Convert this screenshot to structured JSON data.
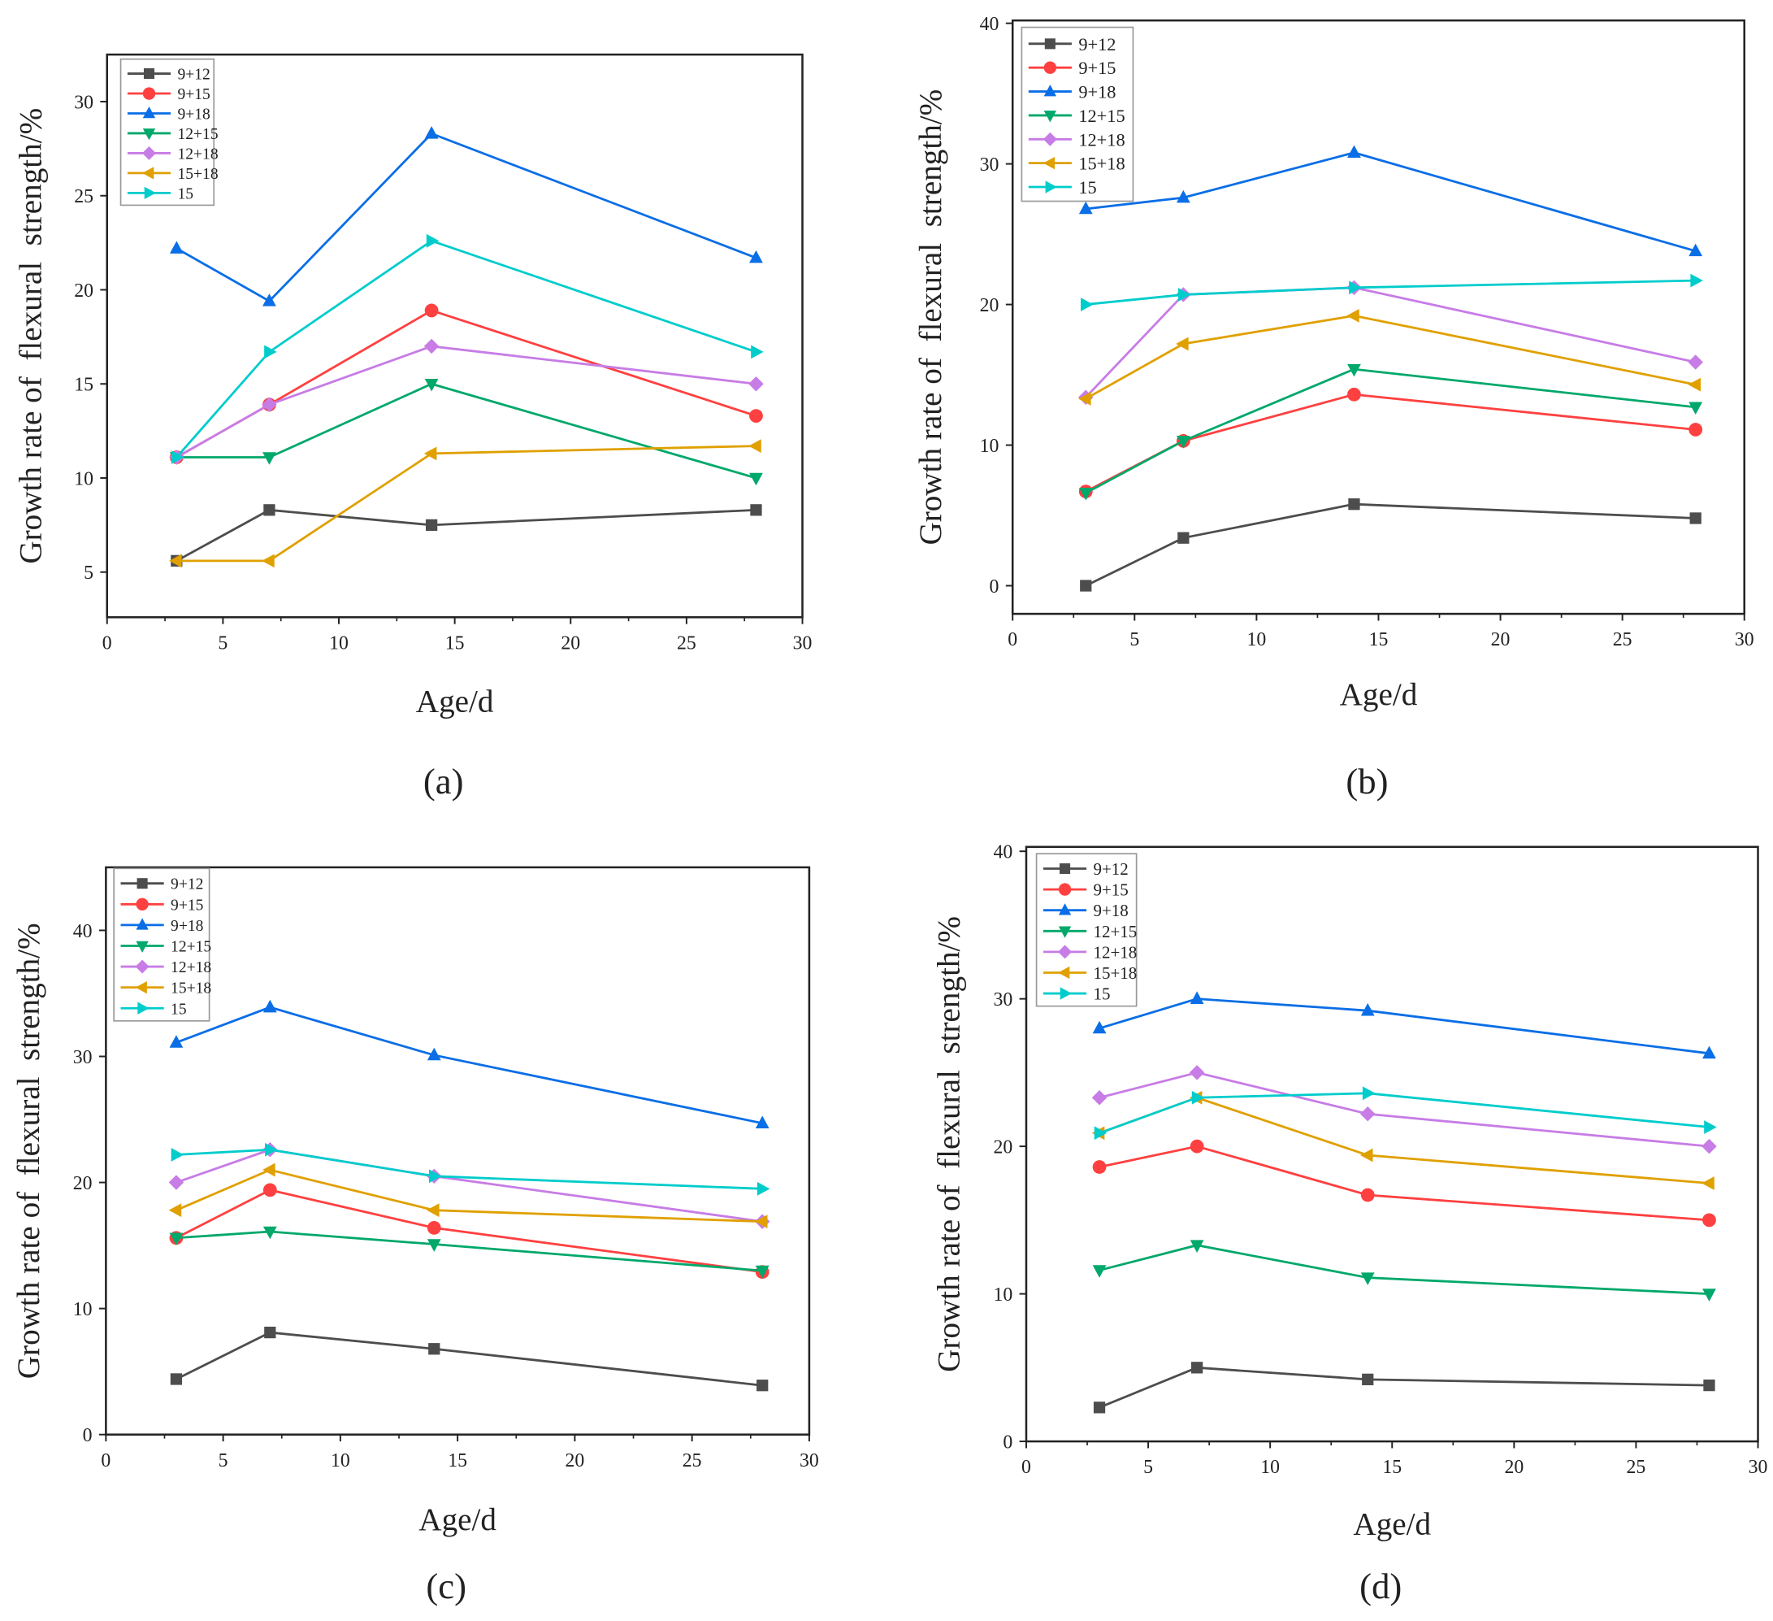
{
  "chart_data": [
    {
      "panel": "(a)",
      "panel_letter": "a",
      "type": "line",
      "xlabel": "Age/d",
      "ylabel": "Growth rate of  flexural  strength/%",
      "xlim": [
        0,
        30
      ],
      "ylim": [
        2.6,
        32.5
      ],
      "xticks": [
        0,
        5,
        10,
        15,
        20,
        25,
        30
      ],
      "yticks": [
        5,
        10,
        15,
        20,
        25,
        30
      ],
      "legend_position": "top-left",
      "x": [
        3,
        7,
        14,
        28
      ],
      "series": [
        {
          "name": "9+12",
          "values": [
            5.6,
            8.3,
            7.5,
            8.3
          ]
        },
        {
          "name": "9+15",
          "values": [
            11.1,
            13.9,
            18.9,
            13.3
          ]
        },
        {
          "name": "9+18",
          "values": [
            22.2,
            19.4,
            28.3,
            21.7
          ]
        },
        {
          "name": "12+15",
          "values": [
            11.1,
            11.1,
            15.0,
            10.0
          ]
        },
        {
          "name": "12+18",
          "values": [
            11.1,
            13.9,
            17.0,
            15.0
          ]
        },
        {
          "name": "15+18",
          "values": [
            5.6,
            5.6,
            11.3,
            11.7
          ]
        },
        {
          "name": "15",
          "values": [
            11.1,
            16.7,
            22.6,
            16.7
          ]
        }
      ]
    },
    {
      "panel": "(b)",
      "panel_letter": "b",
      "type": "line",
      "xlabel": "Age/d",
      "ylabel": "Growth rate of  flexural  strength/%",
      "xlim": [
        0,
        30
      ],
      "ylim": [
        -2,
        40.2
      ],
      "xticks": [
        0,
        5,
        10,
        15,
        20,
        25,
        30
      ],
      "yticks": [
        0,
        10,
        20,
        30,
        40
      ],
      "legend_position": "top-left",
      "x": [
        3,
        7,
        14,
        28
      ],
      "series": [
        {
          "name": "9+12",
          "values": [
            0.0,
            3.4,
            5.8,
            4.8
          ]
        },
        {
          "name": "9+15",
          "values": [
            6.7,
            10.3,
            13.6,
            11.1
          ]
        },
        {
          "name": "9+18",
          "values": [
            26.8,
            27.6,
            30.8,
            23.8
          ]
        },
        {
          "name": "12+15",
          "values": [
            6.6,
            10.3,
            15.4,
            12.7
          ]
        },
        {
          "name": "12+18",
          "values": [
            13.4,
            20.7,
            21.2,
            15.9
          ]
        },
        {
          "name": "15+18",
          "values": [
            13.3,
            17.2,
            19.2,
            14.3
          ]
        },
        {
          "name": "15",
          "values": [
            20.0,
            20.7,
            21.2,
            21.7
          ]
        }
      ]
    },
    {
      "panel": "(c)",
      "panel_letter": "c",
      "type": "line",
      "xlabel": "Age/d",
      "ylabel": "Growth rate of  flexural  strength/%",
      "xlim": [
        0,
        30
      ],
      "ylim": [
        0,
        45
      ],
      "xticks": [
        0,
        5,
        10,
        15,
        20,
        25,
        30
      ],
      "yticks": [
        0,
        10,
        20,
        30,
        40
      ],
      "legend_position": "top-left",
      "x": [
        3,
        7,
        14,
        28
      ],
      "series": [
        {
          "name": "9+12",
          "values": [
            4.4,
            8.1,
            6.8,
            3.9
          ]
        },
        {
          "name": "9+15",
          "values": [
            15.6,
            19.4,
            16.4,
            12.9
          ]
        },
        {
          "name": "9+18",
          "values": [
            31.1,
            33.9,
            30.1,
            24.7
          ]
        },
        {
          "name": "12+15",
          "values": [
            15.6,
            16.1,
            15.1,
            13.0
          ]
        },
        {
          "name": "12+18",
          "values": [
            20.0,
            22.6,
            20.5,
            16.9
          ]
        },
        {
          "name": "15+18",
          "values": [
            17.8,
            21.0,
            17.8,
            16.9
          ]
        },
        {
          "name": "15",
          "values": [
            22.2,
            22.6,
            20.5,
            19.5
          ]
        }
      ]
    },
    {
      "panel": "(d)",
      "panel_letter": "d",
      "type": "line",
      "xlabel": "Age/d",
      "ylabel": "Growth rate of  flexural  strength/%",
      "xlim": [
        0,
        30
      ],
      "ylim": [
        0,
        40.3
      ],
      "xticks": [
        0,
        5,
        10,
        15,
        20,
        25,
        30
      ],
      "yticks": [
        0,
        10,
        20,
        30,
        40
      ],
      "legend_position": "top-left",
      "x": [
        3,
        7,
        14,
        28
      ],
      "series": [
        {
          "name": "9+12",
          "values": [
            2.3,
            5.0,
            4.2,
            3.8
          ]
        },
        {
          "name": "9+15",
          "values": [
            18.6,
            20.0,
            16.7,
            15.0
          ]
        },
        {
          "name": "9+18",
          "values": [
            28.0,
            30.0,
            29.2,
            26.3
          ]
        },
        {
          "name": "12+15",
          "values": [
            11.6,
            13.3,
            11.1,
            10.0
          ]
        },
        {
          "name": "12+18",
          "values": [
            23.3,
            25.0,
            22.2,
            20.0
          ]
        },
        {
          "name": "15+18",
          "values": [
            20.9,
            23.3,
            19.4,
            17.5
          ]
        },
        {
          "name": "15",
          "values": [
            20.9,
            23.3,
            23.6,
            21.3
          ]
        }
      ]
    }
  ],
  "series_style": [
    {
      "color": "#4d4d4d",
      "marker": "square"
    },
    {
      "color": "#ff4040",
      "marker": "circle"
    },
    {
      "color": "#0a6ee6",
      "marker": "triangle-up"
    },
    {
      "color": "#00a86b",
      "marker": "triangle-down"
    },
    {
      "color": "#c77ce6",
      "marker": "diamond"
    },
    {
      "color": "#e0a000",
      "marker": "triangle-left"
    },
    {
      "color": "#00cccc",
      "marker": "triangle-right"
    }
  ]
}
